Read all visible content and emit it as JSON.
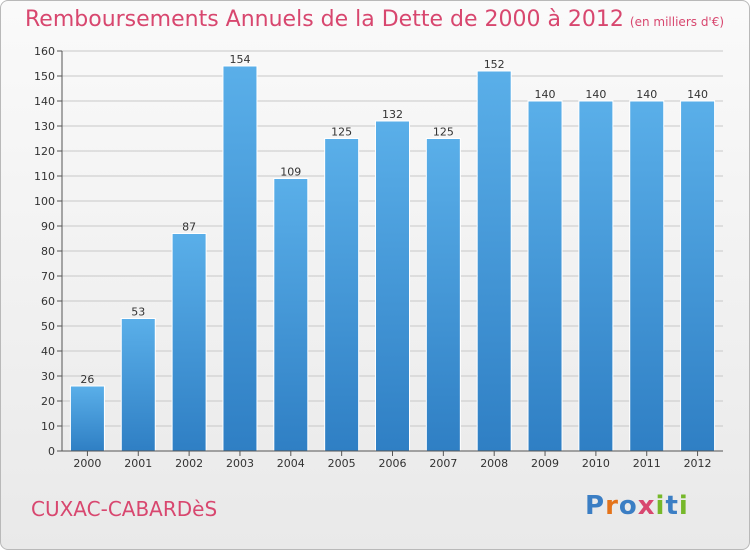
{
  "title": "Remboursements Annuels de la Dette de 2000 à 2012",
  "unit_note": "(en milliers d'€)",
  "commune": "CUXAC-CABARDèS",
  "brand": {
    "text": "Proxiti",
    "letter_colors": [
      "#3b7ec4",
      "#e4731a",
      "#3b7ec4",
      "#d8476f",
      "#76b82a",
      "#3b7ec4",
      "#76b82a"
    ]
  },
  "colors": {
    "bar_light": "#5aafe9",
    "bar_dark": "#2f7fc4",
    "title": "#d8476f",
    "grid": "#c8c8c8"
  },
  "chart_data": {
    "type": "bar",
    "title": "Remboursements Annuels de la Dette de 2000 à 2012",
    "ylabel": "(en milliers d'€)",
    "xlabel": "",
    "categories": [
      "2000",
      "2001",
      "2002",
      "2003",
      "2004",
      "2005",
      "2006",
      "2007",
      "2008",
      "2009",
      "2010",
      "2011",
      "2012"
    ],
    "values": [
      26,
      53,
      87,
      154,
      109,
      125,
      132,
      125,
      152,
      140,
      140,
      140,
      140
    ],
    "ylim": [
      0,
      160
    ],
    "yticks": [
      0,
      10,
      20,
      30,
      40,
      50,
      60,
      70,
      80,
      90,
      100,
      110,
      120,
      130,
      140,
      150,
      160
    ],
    "grid": true,
    "data_labels": true
  }
}
